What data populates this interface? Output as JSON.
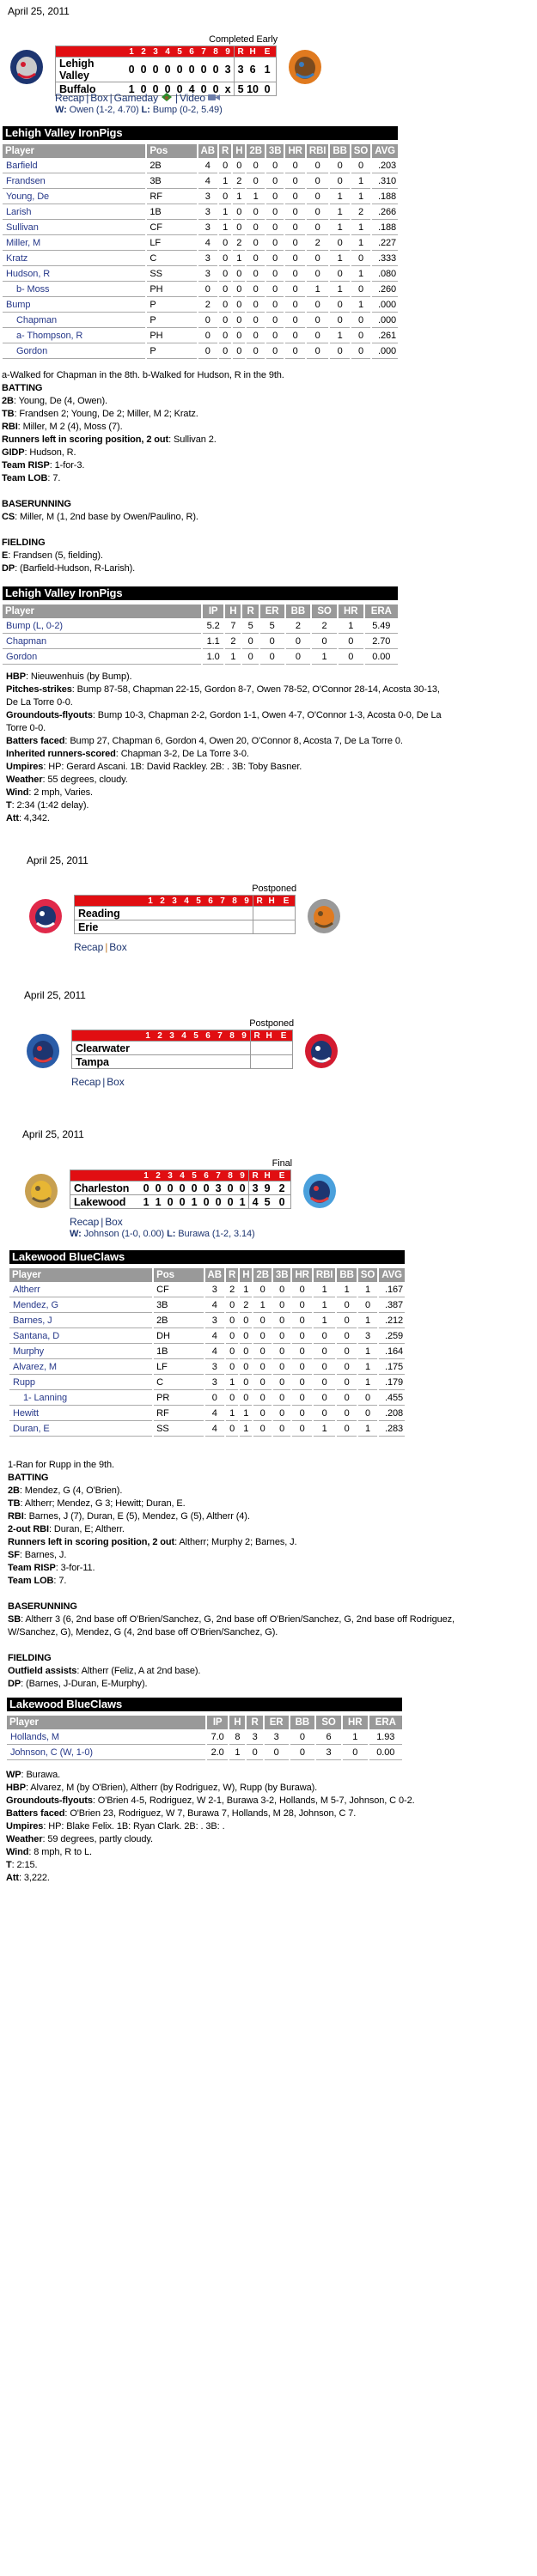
{
  "colors": {
    "linescore_header": "#e10e12",
    "team_bar": "#000000",
    "table_header": "#999999",
    "link": "#1d3570",
    "player_link": "#27398a"
  },
  "games": [
    {
      "date": "April 25, 2011",
      "status": "Completed Early",
      "innings_header": [
        "1",
        "2",
        "3",
        "4",
        "5",
        "6",
        "7",
        "8",
        "9"
      ],
      "totals_header": [
        "R",
        "H",
        "E"
      ],
      "away": {
        "name": "Lehigh Valley",
        "innings": [
          "0",
          "0",
          "0",
          "0",
          "0",
          "0",
          "0",
          "0",
          "3"
        ],
        "r": "3",
        "h": "6",
        "e": "1",
        "logo": "ironpigs-logo"
      },
      "home": {
        "name": "Buffalo",
        "innings": [
          "1",
          "0",
          "0",
          "0",
          "0",
          "4",
          "0",
          "0",
          "x"
        ],
        "r": "5",
        "h": "10",
        "e": "0",
        "logo": "bisons-logo"
      },
      "links": [
        "Recap",
        "Box",
        "Gameday",
        "Video"
      ],
      "wl": {
        "w_label": "W:",
        "w": "Owen (1-2, 4.70)",
        "l_label": "L:",
        "l": "Bump (0-2, 5.49)"
      }
    },
    {
      "date": "April 25, 2011",
      "status": "Postponed",
      "innings_header": [
        "1",
        "2",
        "3",
        "4",
        "5",
        "6",
        "7",
        "8",
        "9"
      ],
      "totals_header": [
        "R",
        "H",
        "E"
      ],
      "away": {
        "name": "Reading",
        "innings": [
          "",
          "",
          "",
          "",
          "",
          "",
          "",
          "",
          ""
        ],
        "r": "",
        "h": "",
        "e": "",
        "logo": "reading-logo"
      },
      "home": {
        "name": "Erie",
        "innings": [
          "",
          "",
          "",
          "",
          "",
          "",
          "",
          "",
          ""
        ],
        "r": "",
        "h": "",
        "e": "",
        "logo": "erie-logo"
      },
      "links": [
        "Recap",
        "Box"
      ]
    },
    {
      "date": "April 25, 2011",
      "status": "Postponed",
      "innings_header": [
        "1",
        "2",
        "3",
        "4",
        "5",
        "6",
        "7",
        "8",
        "9"
      ],
      "totals_header": [
        "R",
        "H",
        "E"
      ],
      "away": {
        "name": "Clearwater",
        "innings": [
          "",
          "",
          "",
          "",
          "",
          "",
          "",
          "",
          ""
        ],
        "r": "",
        "h": "",
        "e": "",
        "logo": "clearwater-logo"
      },
      "home": {
        "name": "Tampa",
        "innings": [
          "",
          "",
          "",
          "",
          "",
          "",
          "",
          "",
          ""
        ],
        "r": "",
        "h": "",
        "e": "",
        "logo": "tampa-logo"
      },
      "links": [
        "Recap",
        "Box"
      ]
    },
    {
      "date": "April 25, 2011",
      "status": "Final",
      "innings_header": [
        "1",
        "2",
        "3",
        "4",
        "5",
        "6",
        "7",
        "8",
        "9"
      ],
      "totals_header": [
        "R",
        "H",
        "E"
      ],
      "away": {
        "name": "Charleston",
        "innings": [
          "0",
          "0",
          "0",
          "0",
          "0",
          "0",
          "3",
          "0",
          "0"
        ],
        "r": "3",
        "h": "9",
        "e": "2",
        "logo": "charleston-logo"
      },
      "home": {
        "name": "Lakewood",
        "innings": [
          "1",
          "1",
          "0",
          "0",
          "1",
          "0",
          "0",
          "0",
          "1"
        ],
        "r": "4",
        "h": "5",
        "e": "0",
        "logo": "lakewood-logo"
      },
      "links": [
        "Recap",
        "Box"
      ],
      "wl": {
        "w_label": "W:",
        "w": "Johnson (1-0, 0.00)",
        "l_label": "L:",
        "l": "Burawa (1-2, 3.14)"
      }
    }
  ],
  "batting": [
    {
      "team": "Lehigh Valley IronPigs",
      "columns": [
        "Player",
        "Pos",
        "AB",
        "R",
        "H",
        "2B",
        "3B",
        "HR",
        "RBI",
        "BB",
        "SO",
        "AVG"
      ],
      "rows": [
        {
          "player": "Barfield",
          "pos": "2B",
          "stats": [
            "4",
            "0",
            "0",
            "0",
            "0",
            "0",
            "0",
            "0",
            "0",
            ".203"
          ]
        },
        {
          "player": "Frandsen",
          "pos": "3B",
          "stats": [
            "4",
            "1",
            "2",
            "0",
            "0",
            "0",
            "0",
            "0",
            "1",
            ".310"
          ]
        },
        {
          "player": "Young, De",
          "pos": "RF",
          "stats": [
            "3",
            "0",
            "1",
            "1",
            "0",
            "0",
            "0",
            "1",
            "1",
            ".188"
          ]
        },
        {
          "player": "Larish",
          "pos": "1B",
          "stats": [
            "3",
            "1",
            "0",
            "0",
            "0",
            "0",
            "0",
            "1",
            "2",
            ".266"
          ]
        },
        {
          "player": "Sullivan",
          "pos": "CF",
          "stats": [
            "3",
            "1",
            "0",
            "0",
            "0",
            "0",
            "0",
            "1",
            "1",
            ".188"
          ]
        },
        {
          "player": "Miller, M",
          "pos": "LF",
          "stats": [
            "4",
            "0",
            "2",
            "0",
            "0",
            "0",
            "2",
            "0",
            "1",
            ".227"
          ]
        },
        {
          "player": "Kratz",
          "pos": "C",
          "stats": [
            "3",
            "0",
            "1",
            "0",
            "0",
            "0",
            "0",
            "1",
            "0",
            ".333"
          ]
        },
        {
          "player": "Hudson, R",
          "pos": "SS",
          "stats": [
            "3",
            "0",
            "0",
            "0",
            "0",
            "0",
            "0",
            "0",
            "1",
            ".080"
          ]
        },
        {
          "player": "b- Moss",
          "pos": "PH",
          "sub": true,
          "stats": [
            "0",
            "0",
            "0",
            "0",
            "0",
            "0",
            "1",
            "1",
            "0",
            ".260"
          ]
        },
        {
          "player": "Bump",
          "pos": "P",
          "stats": [
            "2",
            "0",
            "0",
            "0",
            "0",
            "0",
            "0",
            "0",
            "1",
            ".000"
          ]
        },
        {
          "player": "Chapman",
          "pos": "P",
          "sub": true,
          "stats": [
            "0",
            "0",
            "0",
            "0",
            "0",
            "0",
            "0",
            "0",
            "0",
            ".000"
          ]
        },
        {
          "player": "a- Thompson, R",
          "pos": "PH",
          "sub": true,
          "stats": [
            "0",
            "0",
            "0",
            "0",
            "0",
            "0",
            "0",
            "1",
            "0",
            ".261"
          ]
        },
        {
          "player": "Gordon",
          "pos": "P",
          "sub": true,
          "stats": [
            "0",
            "0",
            "0",
            "0",
            "0",
            "0",
            "0",
            "0",
            "0",
            ".000"
          ]
        }
      ]
    },
    {
      "team": "Lakewood BlueClaws",
      "columns": [
        "Player",
        "Pos",
        "AB",
        "R",
        "H",
        "2B",
        "3B",
        "HR",
        "RBI",
        "BB",
        "SO",
        "AVG"
      ],
      "rows": [
        {
          "player": "Altherr",
          "pos": "CF",
          "stats": [
            "3",
            "2",
            "1",
            "0",
            "0",
            "0",
            "1",
            "1",
            "1",
            ".167"
          ]
        },
        {
          "player": "Mendez, G",
          "pos": "3B",
          "stats": [
            "4",
            "0",
            "2",
            "1",
            "0",
            "0",
            "1",
            "0",
            "0",
            ".387"
          ]
        },
        {
          "player": "Barnes, J",
          "pos": "2B",
          "stats": [
            "3",
            "0",
            "0",
            "0",
            "0",
            "0",
            "1",
            "0",
            "1",
            ".212"
          ]
        },
        {
          "player": "Santana, D",
          "pos": "DH",
          "stats": [
            "4",
            "0",
            "0",
            "0",
            "0",
            "0",
            "0",
            "0",
            "3",
            ".259"
          ]
        },
        {
          "player": "Murphy",
          "pos": "1B",
          "stats": [
            "4",
            "0",
            "0",
            "0",
            "0",
            "0",
            "0",
            "0",
            "1",
            ".164"
          ]
        },
        {
          "player": "Alvarez, M",
          "pos": "LF",
          "stats": [
            "3",
            "0",
            "0",
            "0",
            "0",
            "0",
            "0",
            "0",
            "1",
            ".175"
          ]
        },
        {
          "player": "Rupp",
          "pos": "C",
          "stats": [
            "3",
            "1",
            "0",
            "0",
            "0",
            "0",
            "0",
            "0",
            "1",
            ".179"
          ]
        },
        {
          "player": "1- Lanning",
          "pos": "PR",
          "sub": true,
          "stats": [
            "0",
            "0",
            "0",
            "0",
            "0",
            "0",
            "0",
            "0",
            "0",
            ".455"
          ]
        },
        {
          "player": "Hewitt",
          "pos": "RF",
          "stats": [
            "4",
            "1",
            "1",
            "0",
            "0",
            "0",
            "0",
            "0",
            "0",
            ".208"
          ]
        },
        {
          "player": "Duran, E",
          "pos": "SS",
          "stats": [
            "4",
            "0",
            "1",
            "0",
            "0",
            "0",
            "1",
            "0",
            "1",
            ".283"
          ]
        }
      ]
    }
  ],
  "batting_notes": [
    {
      "intro": "a-Walked for Chapman in the 8th. b-Walked for Hudson, R in the 9th.",
      "sections": [
        {
          "heading": "BATTING",
          "lines": [
            {
              "b": "2B",
              "t": ": Young, De (4, Owen)."
            },
            {
              "b": "TB",
              "t": ": Frandsen 2; Young, De 2; Miller, M 2; Kratz."
            },
            {
              "b": "RBI",
              "t": ": Miller, M 2 (4), Moss (7)."
            },
            {
              "b": "Runners left in scoring position, 2 out",
              "t": ": Sullivan 2."
            },
            {
              "b": "GIDP",
              "t": ": Hudson, R."
            },
            {
              "b": "Team RISP",
              "t": ": 1-for-3."
            },
            {
              "b": "Team LOB",
              "t": ": 7."
            }
          ]
        },
        {
          "heading": "BASERUNNING",
          "lines": [
            {
              "b": "CS",
              "t": ": Miller, M (1, 2nd base by Owen/Paulino, R)."
            }
          ]
        },
        {
          "heading": "FIELDING",
          "lines": [
            {
              "b": "E",
              "t": ": Frandsen (5, fielding)."
            },
            {
              "b": "DP",
              "t": ": (Barfield-Hudson, R-Larish)."
            }
          ]
        }
      ]
    },
    {
      "intro": "1-Ran for Rupp in the 9th.",
      "sections": [
        {
          "heading": "BATTING",
          "lines": [
            {
              "b": "2B",
              "t": ": Mendez, G (4, O'Brien)."
            },
            {
              "b": "TB",
              "t": ": Altherr; Mendez, G 3; Hewitt; Duran, E."
            },
            {
              "b": "RBI",
              "t": ": Barnes, J (7), Duran, E (5), Mendez, G (5), Altherr (4)."
            },
            {
              "b": "2-out RBI",
              "t": ": Duran, E; Altherr."
            },
            {
              "b": "Runners left in scoring position, 2 out",
              "t": ": Altherr; Murphy 2; Barnes, J."
            },
            {
              "b": "SF",
              "t": ": Barnes, J."
            },
            {
              "b": "Team RISP",
              "t": ": 3-for-11."
            },
            {
              "b": "Team LOB",
              "t": ": 7."
            }
          ]
        },
        {
          "heading": "BASERUNNING",
          "lines": [
            {
              "b": "SB",
              "t": ": Altherr 3 (6, 2nd base off O'Brien/Sanchez, G, 2nd base off O'Brien/Sanchez, G, 2nd base off Rodriguez, W/Sanchez, G), Mendez, G (4, 2nd base off O'Brien/Sanchez, G)."
            }
          ]
        },
        {
          "heading": "FIELDING",
          "lines": [
            {
              "b": "Outfield assists",
              "t": ": Altherr (Feliz, A at 2nd base)."
            },
            {
              "b": "DP",
              "t": ": (Barnes, J-Duran, E-Murphy)."
            }
          ]
        }
      ]
    }
  ],
  "pitching": [
    {
      "team": "Lehigh Valley IronPigs",
      "columns": [
        "Player",
        "IP",
        "H",
        "R",
        "ER",
        "BB",
        "SO",
        "HR",
        "ERA"
      ],
      "rows": [
        {
          "player": "Bump (L, 0-2)",
          "stats": [
            "5.2",
            "7",
            "5",
            "5",
            "2",
            "2",
            "1",
            "5.49"
          ]
        },
        {
          "player": "Chapman",
          "stats": [
            "1.1",
            "2",
            "0",
            "0",
            "0",
            "0",
            "0",
            "2.70"
          ]
        },
        {
          "player": "Gordon",
          "stats": [
            "1.0",
            "1",
            "0",
            "0",
            "0",
            "1",
            "0",
            "0.00"
          ]
        }
      ],
      "notes": [
        {
          "b": "HBP",
          "t": ": Nieuwenhuis (by Bump)."
        },
        {
          "b": "Pitches-strikes",
          "t": ": Bump 87-58, Chapman 22-15, Gordon 8-7, Owen 78-52, O'Connor 28-14, Acosta 30-13, De La Torre 0-0."
        },
        {
          "b": "Groundouts-flyouts",
          "t": ": Bump 10-3, Chapman 2-2, Gordon 1-1, Owen 4-7, O'Connor 1-3, Acosta 0-0, De La Torre 0-0."
        },
        {
          "b": "Batters faced",
          "t": ": Bump 27, Chapman 6, Gordon 4, Owen 20, O'Connor 8, Acosta 7, De La Torre 0."
        },
        {
          "b": "Inherited runners-scored",
          "t": ": Chapman 3-2, De La Torre 3-0."
        },
        {
          "b": "Umpires",
          "t": ": HP: Gerard Ascani. 1B: David Rackley. 2B: . 3B: Toby Basner."
        },
        {
          "b": "Weather",
          "t": ": 55 degrees, cloudy."
        },
        {
          "b": "Wind",
          "t": ": 2 mph, Varies."
        },
        {
          "b": "T",
          "t": ": 2:34 (1:42 delay)."
        },
        {
          "b": "Att",
          "t": ": 4,342."
        }
      ]
    },
    {
      "team": "Lakewood BlueClaws",
      "columns": [
        "Player",
        "IP",
        "H",
        "R",
        "ER",
        "BB",
        "SO",
        "HR",
        "ERA"
      ],
      "rows": [
        {
          "player": "Hollands, M",
          "stats": [
            "7.0",
            "8",
            "3",
            "3",
            "0",
            "6",
            "1",
            "1.93"
          ]
        },
        {
          "player": "Johnson, C (W, 1-0)",
          "stats": [
            "2.0",
            "1",
            "0",
            "0",
            "0",
            "3",
            "0",
            "0.00"
          ]
        }
      ],
      "notes": [
        {
          "b": "WP",
          "t": ": Burawa."
        },
        {
          "b": "HBP",
          "t": ": Alvarez, M (by O'Brien), Altherr (by Rodriguez, W), Rupp (by Burawa)."
        },
        {
          "b": "Groundouts-flyouts",
          "t": ": O'Brien 4-5, Rodriguez, W 2-1, Burawa 3-2, Hollands, M 5-7, Johnson, C 0-2."
        },
        {
          "b": "Batters faced",
          "t": ": O'Brien 23, Rodriguez, W 7, Burawa 7, Hollands, M 28, Johnson, C 7."
        },
        {
          "b": "Umpires",
          "t": ": HP: Blake Felix. 1B: Ryan Clark. 2B: . 3B: ."
        },
        {
          "b": "Weather",
          "t": ": 59 degrees, partly cloudy."
        },
        {
          "b": "Wind",
          "t": ": 8 mph, R to L."
        },
        {
          "b": "T",
          "t": ": 2:15."
        },
        {
          "b": "Att",
          "t": ": 3,222."
        }
      ]
    }
  ]
}
